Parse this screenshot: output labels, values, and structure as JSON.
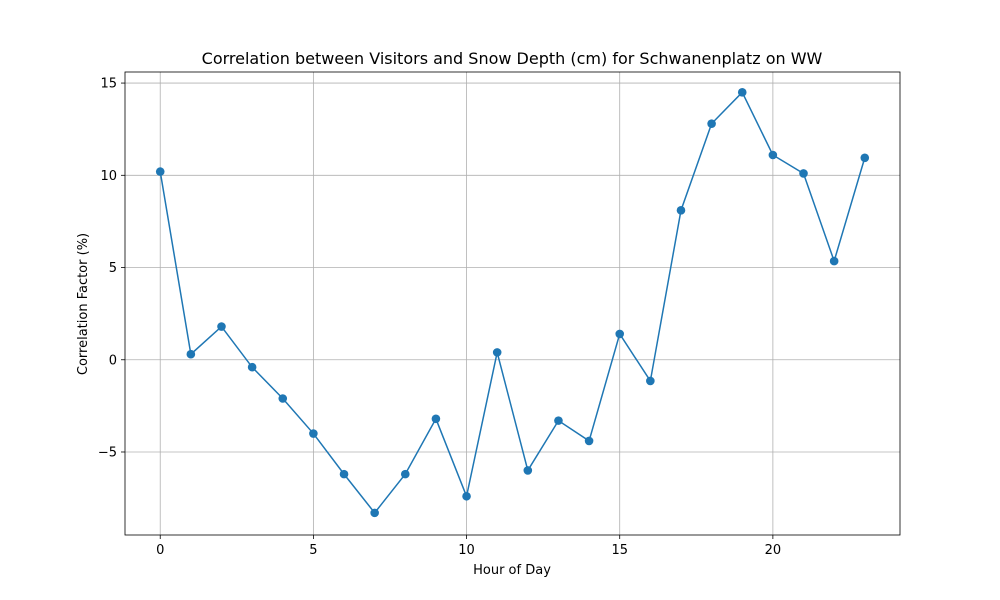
{
  "chart_data": {
    "type": "line",
    "title": "Correlation between Visitors and Snow Depth (cm) for Schwanenplatz on WW",
    "xlabel": "Hour of Day",
    "ylabel": "Correlation Factor (%)",
    "xlim": [
      -1.15,
      24.15
    ],
    "ylim": [
      -9.5,
      15.6
    ],
    "xticks": [
      0,
      5,
      10,
      15,
      20
    ],
    "yticks": [
      -5,
      0,
      5,
      10,
      15
    ],
    "xtick_labels": [
      "0",
      "5",
      "10",
      "15",
      "20"
    ],
    "ytick_labels": [
      "−5",
      "0",
      "5",
      "10",
      "15"
    ],
    "grid": true,
    "color": "#1f77b4",
    "marker": "circle",
    "x": [
      0,
      1,
      2,
      3,
      4,
      5,
      6,
      7,
      8,
      9,
      10,
      11,
      12,
      13,
      14,
      15,
      16,
      17,
      18,
      19,
      20,
      21,
      22,
      23
    ],
    "y": [
      10.2,
      0.3,
      1.8,
      -0.4,
      -2.1,
      -4.0,
      -6.2,
      -8.3,
      -6.2,
      -3.2,
      -7.4,
      0.4,
      -6.0,
      -3.3,
      -4.4,
      1.4,
      -1.15,
      8.1,
      12.8,
      14.5,
      11.1,
      10.1,
      5.35,
      10.95
    ]
  }
}
